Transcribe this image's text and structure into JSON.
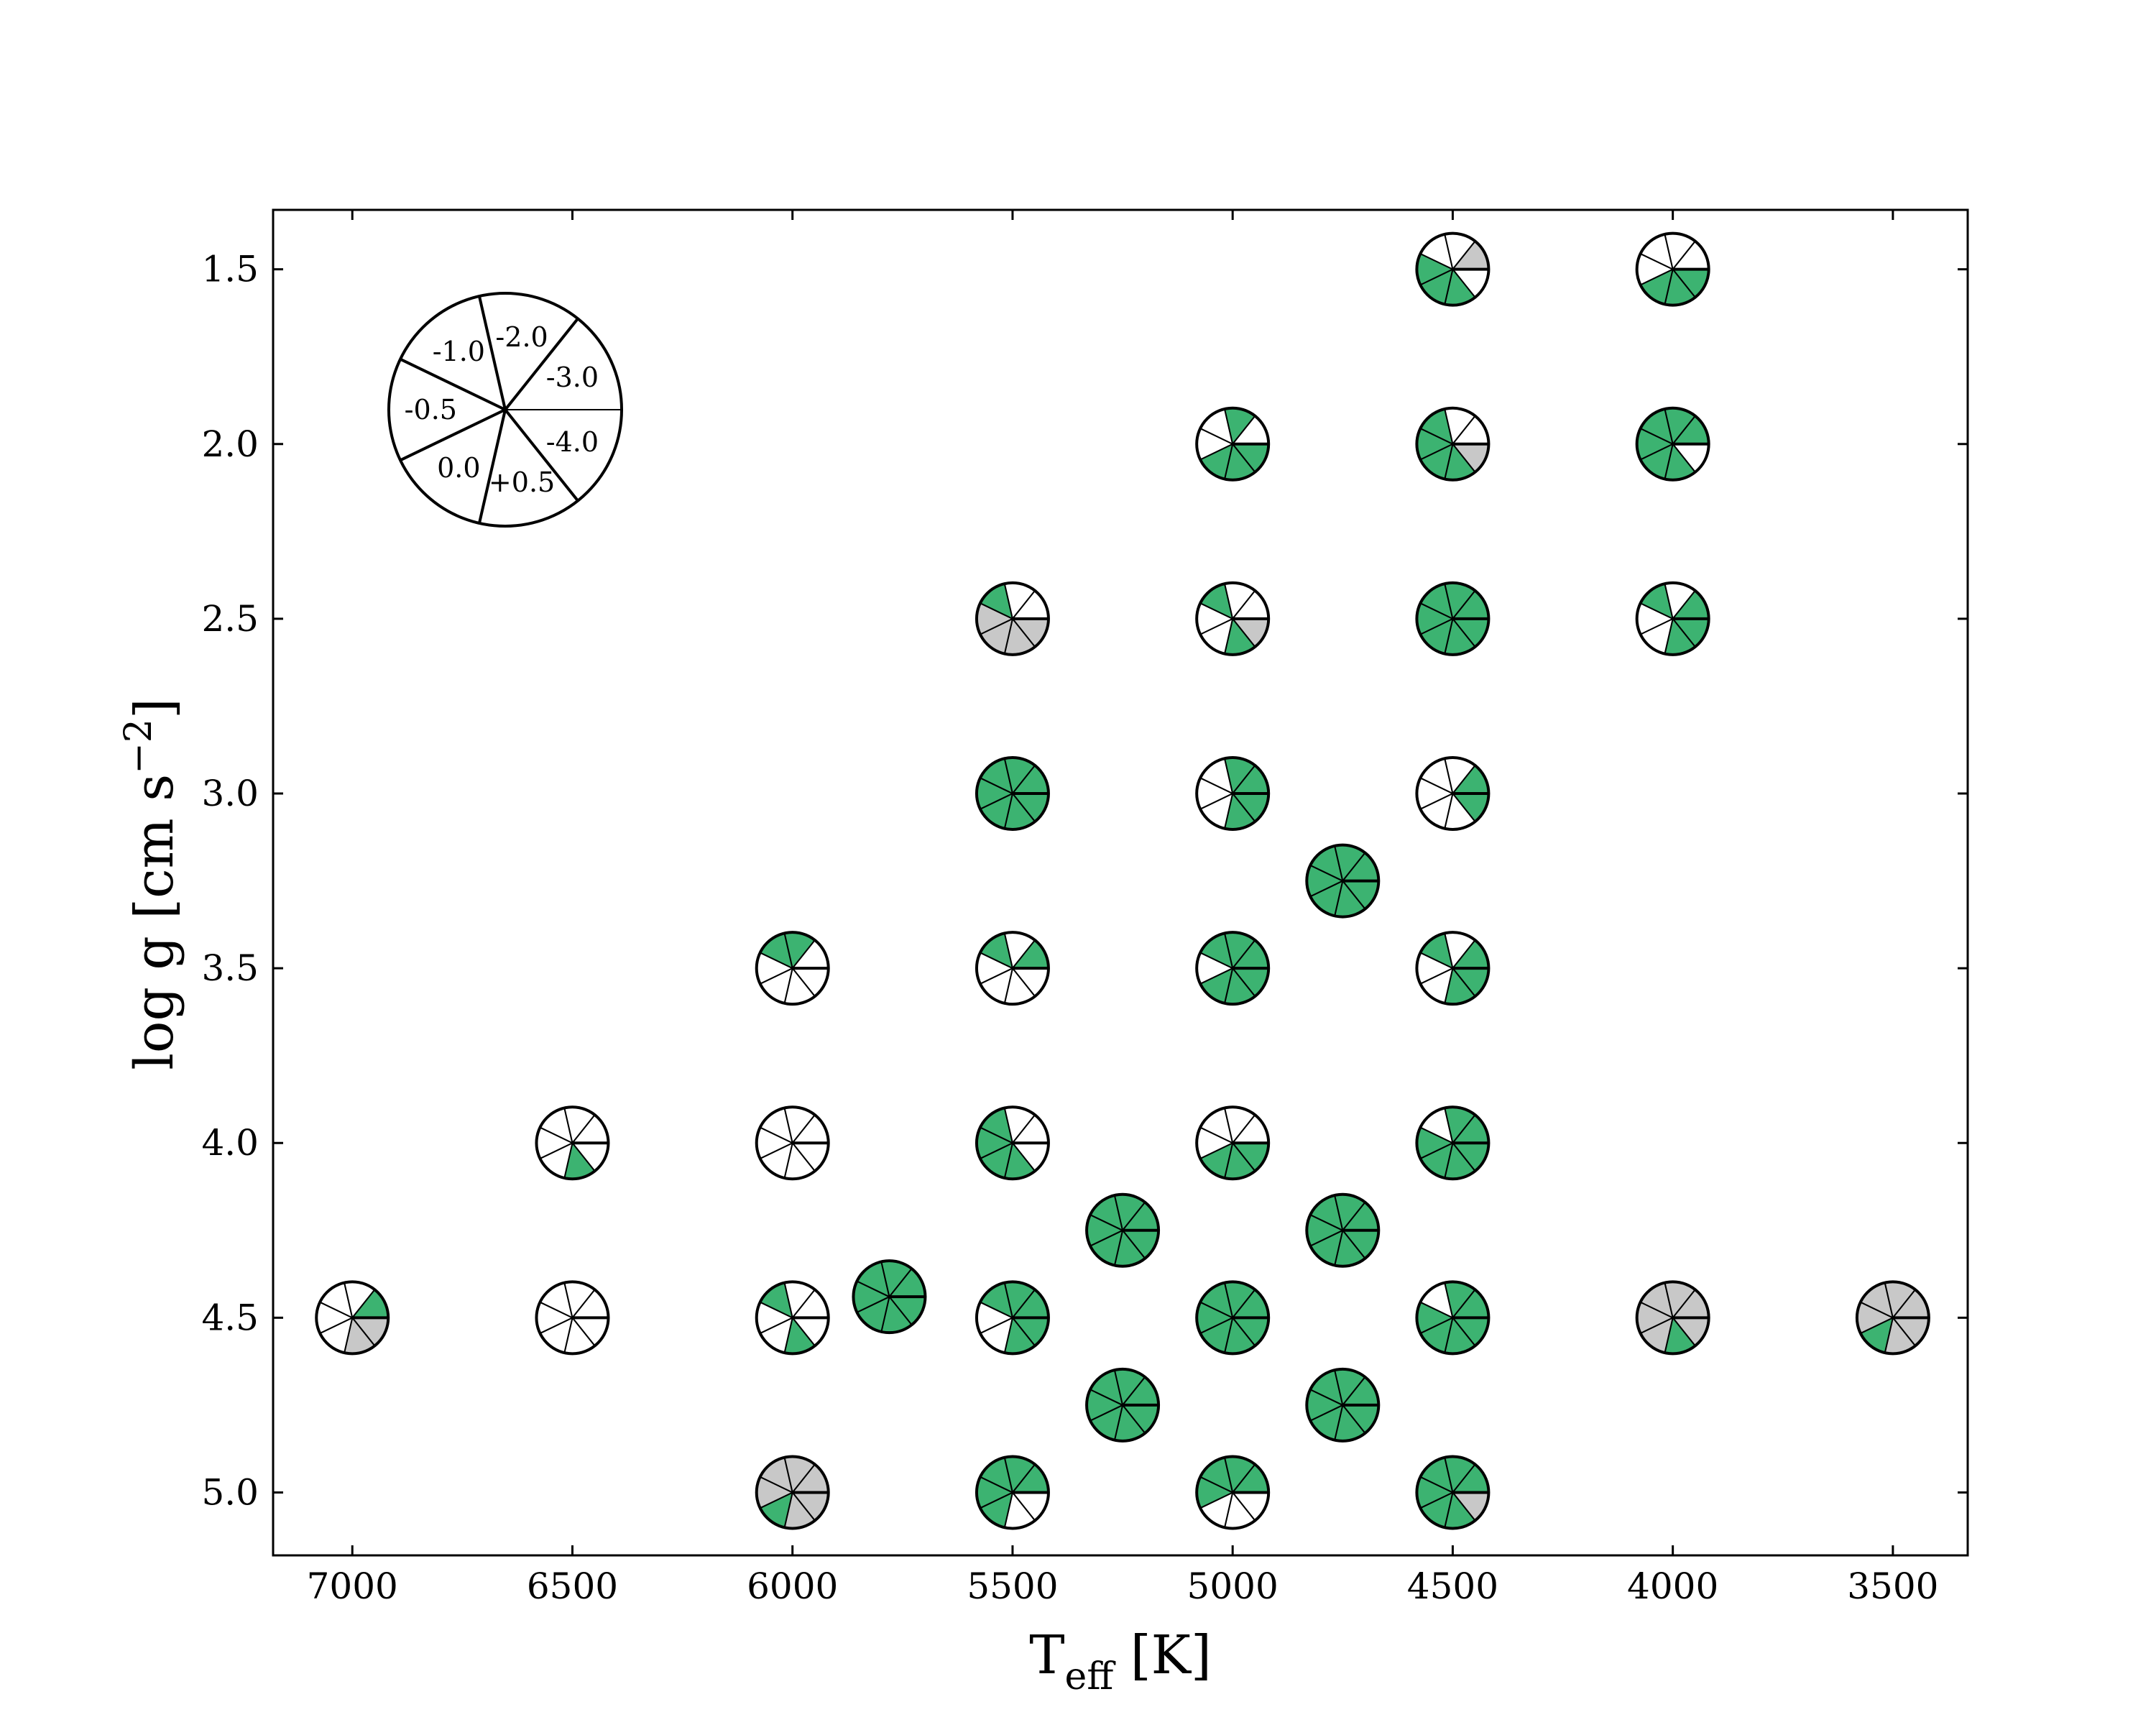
{
  "chart_data": {
    "type": "scatter",
    "title": "",
    "xlabel": {
      "main": "T",
      "sub": "eff",
      "unit": " [K]"
    },
    "ylabel": {
      "main": "log g [cm s",
      "sup": "−2",
      "end": "]"
    },
    "xlim": [
      7180,
      3330
    ],
    "ylim": [
      5.18,
      1.33
    ],
    "x_ticks": [
      7000,
      6500,
      6000,
      5500,
      5000,
      4500,
      4000,
      3500
    ],
    "x_tick_labels": [
      "7000",
      "6500",
      "6000",
      "5500",
      "5000",
      "4500",
      "4000",
      "3500"
    ],
    "y_ticks": [
      1.5,
      2.0,
      2.5,
      3.0,
      3.5,
      4.0,
      4.5,
      5.0
    ],
    "y_tick_labels": [
      "1.5",
      "2.0",
      "2.5",
      "3.0",
      "3.5",
      "4.0",
      "4.5",
      "5.0"
    ],
    "grid": false,
    "colors": {
      "available": "#3cb371",
      "partial": "#c8c8c8",
      "missing": "#ffffff"
    },
    "wedge_start_deg": 0,
    "wedge_direction": "clockwise",
    "legend": {
      "placement": "top-left",
      "title": "",
      "metallicities": [
        "-4.0",
        "+0.5",
        "0.0",
        "-0.5",
        "-1.0",
        "-2.0",
        "-3.0"
      ]
    },
    "points": [
      {
        "teff": 4500,
        "logg": 1.5,
        "state": "WGGGWWP"
      },
      {
        "teff": 4000,
        "logg": 1.5,
        "state": "GGGWWWW"
      },
      {
        "teff": 5000,
        "logg": 2.0,
        "state": "GGGWWGW"
      },
      {
        "teff": 4500,
        "logg": 2.0,
        "state": "PGGGGWW"
      },
      {
        "teff": 4000,
        "logg": 2.0,
        "state": "WGGGGGG"
      },
      {
        "teff": 5500,
        "logg": 2.5,
        "state": "PPPPGWW"
      },
      {
        "teff": 5000,
        "logg": 2.5,
        "state": "PGWWGWW"
      },
      {
        "teff": 4500,
        "logg": 2.5,
        "state": "GGGGGGG"
      },
      {
        "teff": 4000,
        "logg": 2.5,
        "state": "GGWWGWG"
      },
      {
        "teff": 5500,
        "logg": 3.0,
        "state": "GGGGGGG"
      },
      {
        "teff": 5000,
        "logg": 3.0,
        "state": "GGWWWGG"
      },
      {
        "teff": 4500,
        "logg": 3.0,
        "state": "GWWWWWG"
      },
      {
        "teff": 4750,
        "logg": 3.25,
        "state": "GGGGGGG"
      },
      {
        "teff": 6000,
        "logg": 3.5,
        "state": "WWWWGGW"
      },
      {
        "teff": 5500,
        "logg": 3.5,
        "state": "WWWWGWG"
      },
      {
        "teff": 5000,
        "logg": 3.5,
        "state": "GGGWGGG"
      },
      {
        "teff": 4500,
        "logg": 3.5,
        "state": "GGWWGWG"
      },
      {
        "teff": 6500,
        "logg": 4.0,
        "state": "WGWWWWW"
      },
      {
        "teff": 6000,
        "logg": 4.0,
        "state": "WWWWWWW"
      },
      {
        "teff": 5500,
        "logg": 4.0,
        "state": "WGGGGWW"
      },
      {
        "teff": 5000,
        "logg": 4.0,
        "state": "GGGWWWW"
      },
      {
        "teff": 4500,
        "logg": 4.0,
        "state": "GGGGWGG"
      },
      {
        "teff": 5250,
        "logg": 4.25,
        "state": "GGGGGGG"
      },
      {
        "teff": 4750,
        "logg": 4.25,
        "state": "GGGGGGG"
      },
      {
        "teff": 7000,
        "logg": 4.5,
        "state": "PPWWWWG"
      },
      {
        "teff": 6500,
        "logg": 4.5,
        "state": "WWWWWWW"
      },
      {
        "teff": 6000,
        "logg": 4.5,
        "state": "WGWWGWW"
      },
      {
        "teff": 5500,
        "logg": 4.5,
        "state": "GGWWGGG"
      },
      {
        "teff": 5000,
        "logg": 4.5,
        "state": "GGGGGGG"
      },
      {
        "teff": 4500,
        "logg": 4.5,
        "state": "GGGGWGG"
      },
      {
        "teff": 4000,
        "logg": 4.5,
        "state": "PGPPPPP"
      },
      {
        "teff": 3500,
        "logg": 4.5,
        "state": "PPGPPPP"
      },
      {
        "teff": 5780,
        "logg": 4.44,
        "state": "GGGGGGG"
      },
      {
        "teff": 5250,
        "logg": 4.75,
        "state": "GGGGGGG"
      },
      {
        "teff": 4750,
        "logg": 4.75,
        "state": "GGGGGGG"
      },
      {
        "teff": 6000,
        "logg": 5.0,
        "state": "PPGPPPP"
      },
      {
        "teff": 5500,
        "logg": 5.0,
        "state": "WWGGGGG"
      },
      {
        "teff": 5000,
        "logg": 5.0,
        "state": "WWWGGGG"
      },
      {
        "teff": 4500,
        "logg": 5.0,
        "state": "PGGGGGG"
      }
    ]
  }
}
